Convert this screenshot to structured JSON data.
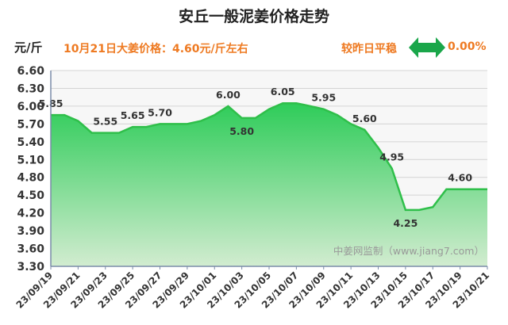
{
  "header": {
    "title": "安丘一般泥姜价格走势",
    "unit": "元/斤",
    "price_line": "10月21日大姜价格：4.60元/斤左右",
    "compare_label": "较昨日平稳",
    "compare_change": "0.00%",
    "arrow_icon": "double-arrow-icon",
    "accent_color": "#ee7a22",
    "arrow_color": "#1aa64a"
  },
  "watermark": "中姜网监制（www.jiang7.com）",
  "chart_data": {
    "type": "area",
    "y_ticks": [
      "6.60",
      "6.30",
      "6.00",
      "5.70",
      "5.40",
      "5.10",
      "4.80",
      "4.50",
      "4.20",
      "3.90",
      "3.60",
      "3.30"
    ],
    "ylim": [
      3.3,
      6.6
    ],
    "x_tick_labels": [
      "23/09/19",
      "23/09/21",
      "23/09/23",
      "23/09/25",
      "23/09/27",
      "23/09/29",
      "23/10/01",
      "23/10/03",
      "23/10/05",
      "23/10/07",
      "23/10/09",
      "23/10/11",
      "23/10/13",
      "23/10/15",
      "23/10/17",
      "23/10/19",
      "23/10/21"
    ],
    "x": [
      "23/09/19",
      "23/09/20",
      "23/09/21",
      "23/09/22",
      "23/09/23",
      "23/09/24",
      "23/09/25",
      "23/09/26",
      "23/09/27",
      "23/09/28",
      "23/09/29",
      "23/09/30",
      "23/10/01",
      "23/10/02",
      "23/10/03",
      "23/10/04",
      "23/10/05",
      "23/10/06",
      "23/10/07",
      "23/10/08",
      "23/10/09",
      "23/10/10",
      "23/10/11",
      "23/10/12",
      "23/10/13",
      "23/10/14",
      "23/10/15",
      "23/10/16",
      "23/10/17",
      "23/10/18",
      "23/10/19",
      "23/10/20",
      "23/10/21"
    ],
    "values": [
      5.85,
      5.85,
      5.75,
      5.55,
      5.55,
      5.55,
      5.65,
      5.65,
      5.7,
      5.7,
      5.7,
      5.75,
      5.85,
      6.0,
      5.8,
      5.8,
      5.95,
      6.05,
      6.05,
      6.0,
      5.95,
      5.85,
      5.7,
      5.6,
      5.3,
      4.95,
      4.25,
      4.25,
      4.3,
      4.6,
      4.6,
      4.6,
      4.6
    ],
    "data_labels": [
      {
        "index": 0,
        "text": "5.85",
        "pos": "above"
      },
      {
        "index": 4,
        "text": "5.55",
        "pos": "above"
      },
      {
        "index": 6,
        "text": "5.65",
        "pos": "above"
      },
      {
        "index": 8,
        "text": "5.70",
        "pos": "above"
      },
      {
        "index": 13,
        "text": "6.00",
        "pos": "above"
      },
      {
        "index": 14,
        "text": "5.80",
        "pos": "below"
      },
      {
        "index": 17,
        "text": "6.05",
        "pos": "above"
      },
      {
        "index": 20,
        "text": "5.95",
        "pos": "above"
      },
      {
        "index": 23,
        "text": "5.60",
        "pos": "above"
      },
      {
        "index": 25,
        "text": "4.95",
        "pos": "above"
      },
      {
        "index": 26,
        "text": "4.25",
        "pos": "below"
      },
      {
        "index": 30,
        "text": "4.60",
        "pos": "above"
      }
    ],
    "grid": true,
    "line_color": "#2fbf4a",
    "fill_top_color": "#2ecc59",
    "fill_bottom_color": "#d2ecd0"
  }
}
